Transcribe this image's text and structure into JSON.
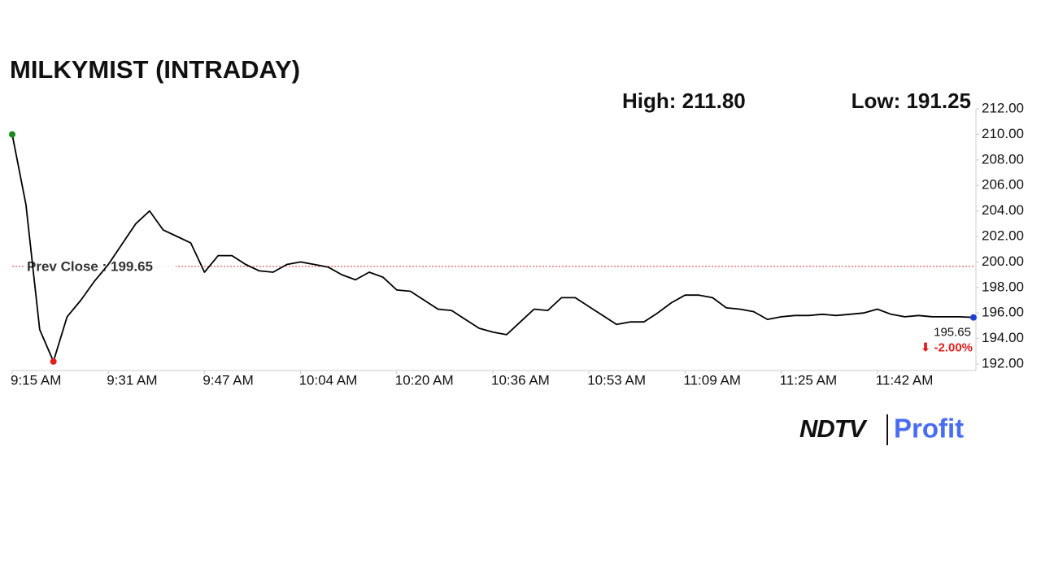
{
  "chart_data": {
    "type": "line",
    "title": "MILKYMIST (INTRADAY)",
    "high_label": "High: 211.80",
    "low_label": "Low: 191.25",
    "categories": [
      "9:15 AM",
      null,
      null,
      null,
      null,
      null,
      null,
      "9:31 AM",
      null,
      null,
      null,
      null,
      null,
      null,
      "9:47 AM",
      null,
      null,
      null,
      null,
      null,
      null,
      "10:04 AM",
      null,
      null,
      null,
      null,
      null,
      null,
      "10:20 AM",
      null,
      null,
      null,
      null,
      null,
      null,
      "10:36 AM",
      null,
      null,
      null,
      null,
      null,
      null,
      "10:53 AM",
      null,
      null,
      null,
      null,
      null,
      null,
      "11:09 AM",
      null,
      null,
      null,
      null,
      null,
      null,
      "11:25 AM",
      null,
      null,
      null,
      null,
      null,
      null,
      "11:42 AM",
      null,
      null,
      null,
      null,
      null,
      null,
      null
    ],
    "series": [
      {
        "color": "#000000",
        "values": [
          210,
          204.5,
          194.7,
          192.2,
          195.7,
          197,
          198.5,
          199.8,
          201.4,
          203,
          204,
          202.5,
          202,
          201.5,
          199.2,
          200.5,
          200.5,
          199.8,
          199.3,
          199.2,
          199.8,
          200,
          199.8,
          199.6,
          199,
          198.6,
          199.2,
          198.8,
          197.8,
          197.7,
          197,
          196.3,
          196.2,
          195.5,
          194.8,
          194.5,
          194.3,
          195.3,
          196.3,
          196.2,
          197.2,
          197.2,
          196.5,
          195.8,
          195.1,
          195.3,
          195.3,
          196,
          196.8,
          197.4,
          197.4,
          197.2,
          196.4,
          196.3,
          196.1,
          195.5,
          195.7,
          195.8,
          195.8,
          195.9,
          195.8,
          195.9,
          196,
          196.3,
          195.9,
          195.7,
          195.8,
          195.7,
          195.7,
          195.7,
          195.65
        ]
      }
    ],
    "start_marker_color": "#1a8a1a",
    "low_marker_color": "#e02020",
    "end_marker_color": "#1f3fd0",
    "reference_line": {
      "value": 199.65,
      "label": "Prev Close : 199.65",
      "color": "#e03030"
    },
    "last_label": "195.65",
    "change_label": "⬇ -2.00%",
    "change_color": "#e02020",
    "ylim": [
      192,
      212
    ],
    "yticks": [
      {
        "value": 192,
        "label": "192.00"
      },
      {
        "value": 194,
        "label": "194.00"
      },
      {
        "value": 196,
        "label": "196.00"
      },
      {
        "value": 198,
        "label": "198.00"
      },
      {
        "value": 200,
        "label": "200.00"
      },
      {
        "value": 202,
        "label": "202.00"
      },
      {
        "value": 204,
        "label": "204.00"
      },
      {
        "value": 206,
        "label": "206.00"
      },
      {
        "value": 208,
        "label": "208.00"
      },
      {
        "value": 210,
        "label": "210.00"
      },
      {
        "value": 212,
        "label": "212.00"
      }
    ],
    "logo": {
      "brand": "NDTV",
      "product": "Profit"
    }
  }
}
